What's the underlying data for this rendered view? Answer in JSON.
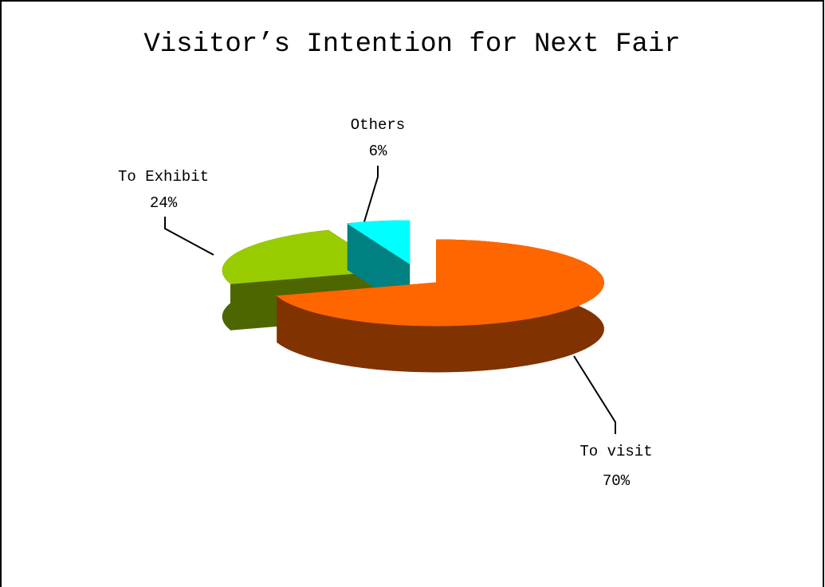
{
  "chart_data": {
    "type": "pie",
    "title": "Visitor’s Intention for Next Fair",
    "categories": [
      "To visit",
      "To Exhibit",
      "Others"
    ],
    "values": [
      70,
      24,
      6
    ],
    "value_labels": [
      "70%",
      "24%",
      "6%"
    ],
    "colors": [
      "#ff6600",
      "#99cc00",
      "#00ffff"
    ],
    "side_colors": [
      "#803300",
      "#4d6600",
      "#008080"
    ]
  }
}
